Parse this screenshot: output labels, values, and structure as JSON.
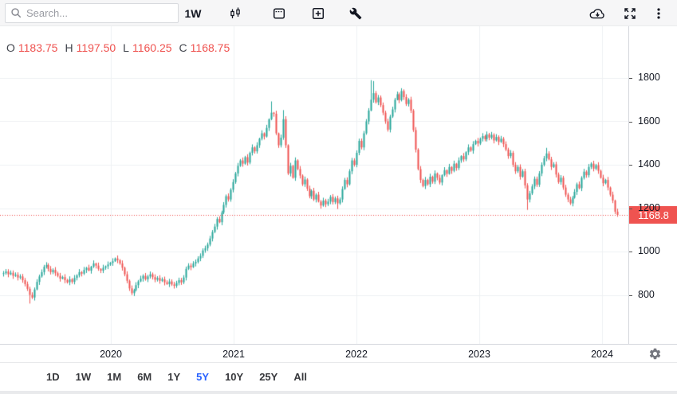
{
  "toolbar": {
    "search_placeholder": "Search...",
    "interval_label": "1W",
    "icon_names": [
      "search-icon",
      "candlestick-style-icon",
      "calendar-icon",
      "compare-add-icon",
      "tools-icon",
      "download-icon",
      "fullscreen-icon",
      "more-menu-icon",
      "settings-gear-icon"
    ]
  },
  "legend": {
    "open_label": "O",
    "open": "1183.75",
    "high_label": "H",
    "high": "1197.50",
    "low_label": "L",
    "low": "1160.25",
    "close_label": "C",
    "close": "1168.75"
  },
  "price_axis": {
    "last_price_label": "1168.8"
  },
  "range_toolbar": {
    "buttons": [
      "1D",
      "1W",
      "1M",
      "6M",
      "1Y",
      "5Y",
      "10Y",
      "25Y",
      "All"
    ],
    "active": "5Y"
  },
  "colors": {
    "up": "#26a69a",
    "down": "#ef5350",
    "last_price_bg": "#ef5350",
    "last_price_line": "#ef5350",
    "grid": "#eef0f3",
    "active_range": "#2962ff",
    "legend_value": "#ef5350"
  },
  "chart_data": {
    "type": "candlestick",
    "interval": "weekly",
    "title": "",
    "xlabel": "",
    "ylabel": "",
    "x_ticks": [
      2020,
      2021,
      2022,
      2023,
      2024
    ],
    "y_ticks": [
      1800,
      1600,
      1400,
      1200,
      1000,
      800
    ],
    "ylim": [
      700,
      1850
    ],
    "grid": true,
    "last_price": 1168.8,
    "last_candle": {
      "open": 1183.75,
      "high": 1197.5,
      "low": 1160.25,
      "close": 1168.75
    },
    "first_open": 897,
    "closes": [
      900,
      908,
      895,
      902,
      888,
      893,
      880,
      885,
      868,
      850,
      828,
      800,
      788,
      825,
      860,
      885,
      905,
      930,
      938,
      920,
      905,
      915,
      900,
      888,
      875,
      882,
      868,
      858,
      872,
      860,
      878,
      890,
      905,
      898,
      915,
      925,
      912,
      930,
      945,
      935,
      920,
      912,
      925,
      932,
      940,
      948,
      955,
      968,
      960,
      945,
      925,
      895,
      865,
      830,
      808,
      822,
      845,
      862,
      875,
      888,
      872,
      885,
      895,
      882,
      870,
      878,
      865,
      872,
      858,
      850,
      862,
      848,
      842,
      855,
      868,
      858,
      880,
      920,
      935,
      928,
      945,
      952,
      968,
      980,
      1005,
      1015,
      1032,
      1060,
      1090,
      1115,
      1150,
      1135,
      1180,
      1215,
      1255,
      1240,
      1285,
      1320,
      1360,
      1395,
      1420,
      1405,
      1435,
      1410,
      1455,
      1480,
      1462,
      1490,
      1520,
      1545,
      1530,
      1570,
      1610,
      1640,
      1635,
      1545,
      1490,
      1525,
      1610,
      1490,
      1360,
      1395,
      1340,
      1420,
      1380,
      1350,
      1310,
      1332,
      1290,
      1255,
      1280,
      1240,
      1262,
      1230,
      1212,
      1235,
      1218,
      1230,
      1252,
      1228,
      1245,
      1222,
      1240,
      1288,
      1330,
      1310,
      1370,
      1420,
      1400,
      1455,
      1510,
      1480,
      1545,
      1600,
      1650,
      1700,
      1730,
      1688,
      1710,
      1675,
      1640,
      1600,
      1562,
      1622,
      1655,
      1700,
      1725,
      1698,
      1740,
      1712,
      1680,
      1700,
      1650,
      1560,
      1470,
      1380,
      1330,
      1302,
      1330,
      1310,
      1345,
      1322,
      1360,
      1340,
      1318,
      1352,
      1375,
      1358,
      1390,
      1372,
      1405,
      1385,
      1420,
      1440,
      1425,
      1458,
      1480,
      1465,
      1495,
      1510,
      1498,
      1520,
      1532,
      1518,
      1540,
      1525,
      1538,
      1512,
      1528,
      1505,
      1520,
      1495,
      1470,
      1440,
      1455,
      1400,
      1370,
      1390,
      1345,
      1370,
      1305,
      1240,
      1268,
      1300,
      1335,
      1308,
      1360,
      1400,
      1430,
      1452,
      1425,
      1390,
      1402,
      1355,
      1320,
      1340,
      1295,
      1262,
      1240,
      1222,
      1248,
      1275,
      1310,
      1292,
      1340,
      1368,
      1352,
      1390,
      1405,
      1382,
      1398,
      1372,
      1340,
      1315,
      1330,
      1295,
      1262,
      1235,
      1183.75,
      1168.75
    ],
    "wick_overrides": {
      "11": {
        "low": 760
      },
      "113": {
        "high": 1692
      },
      "118": {
        "high": 1652
      },
      "141": {
        "low": 1196
      },
      "155": {
        "high": 1790
      },
      "156": {
        "high": 1786
      },
      "177": {
        "low": 1296
      },
      "221": {
        "low": 1192
      },
      "229": {
        "high": 1478
      },
      "259": {
        "high": 1197.5,
        "low": 1160.25
      }
    }
  }
}
